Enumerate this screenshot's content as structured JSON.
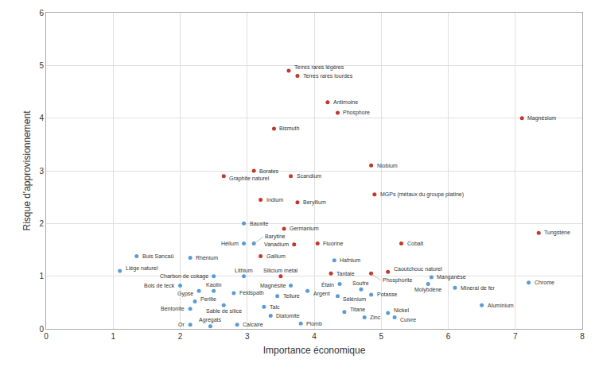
{
  "chart_data": {
    "type": "scatter",
    "xlabel": "Importance économique",
    "ylabel": "Risque d'approvisionnement",
    "xlim": [
      0,
      8
    ],
    "ylim": [
      0,
      6
    ],
    "xticks": [
      0,
      1,
      2,
      3,
      4,
      5,
      6,
      7,
      8
    ],
    "yticks": [
      0,
      1,
      2,
      3,
      4,
      5,
      6
    ],
    "grid": true,
    "labels": [
      "Terres rares légères",
      "Terres rares lourdes",
      "Antimoine",
      "Phosphore",
      "Bismuth",
      "Magnésium",
      "Borates",
      "Scandium",
      "Niobium",
      "Graphite naturel",
      "Indium",
      "Beryllium",
      "MGPs (métaux du groupe platine)",
      "Germanium",
      "Vanadium",
      "Hélium",
      "Barytine",
      "Gallium",
      "Fluorine",
      "Hafnium",
      "Tantale",
      "Phosphorite",
      "Caoutchouc naturel",
      "Cobalt",
      "Tungstène",
      "Manganèse",
      "Molybdène",
      "Chrome",
      "Minerai de fer",
      "Aluminium",
      "Potasse",
      "Nickel",
      "Cuivre",
      "Zinc",
      "Titane",
      "Sélénium",
      "Soufre",
      "Étain",
      "Argent",
      "Magnésite",
      "Silicium métal",
      "Tellure",
      "Plomb",
      "Diatomite",
      "Talc",
      "Feldspath",
      "Kaolin",
      "Sable de silice",
      "Calcaire",
      "Agrégats",
      "Or",
      "Bentonite",
      "Perlite",
      "Gypse",
      "Bauxite",
      "Lithium",
      "Charbon de cokage",
      "Rhénium",
      "Bois de teck",
      "Buis Sancaü",
      "Liège naturel"
    ],
    "x": [
      3.62,
      3.75,
      4.2,
      4.35,
      3.4,
      7.1,
      3.1,
      3.65,
      4.85,
      2.65,
      3.2,
      3.75,
      4.9,
      3.55,
      3.7,
      2.95,
      3.1,
      3.2,
      4.05,
      4.3,
      4.25,
      4.85,
      5.1,
      5.3,
      7.35,
      5.75,
      5.7,
      7.2,
      6.1,
      6.5,
      4.85,
      5.1,
      5.2,
      4.75,
      4.45,
      4.35,
      4.7,
      4.38,
      3.9,
      3.65,
      3.5,
      3.45,
      3.8,
      3.35,
      3.25,
      2.8,
      2.5,
      2.65,
      2.85,
      2.45,
      2.15,
      2.15,
      2.22,
      2.28,
      2.95,
      2.95,
      2.5,
      2.15,
      2.0,
      1.35,
      1.1
    ],
    "values": [
      4.9,
      4.8,
      4.3,
      4.1,
      3.8,
      4.0,
      3.0,
      2.9,
      3.1,
      2.9,
      2.45,
      2.4,
      2.55,
      1.9,
      1.6,
      1.62,
      1.62,
      1.38,
      1.62,
      1.3,
      1.05,
      1.05,
      1.08,
      1.62,
      1.82,
      0.98,
      0.85,
      0.88,
      0.78,
      0.45,
      0.65,
      0.3,
      0.22,
      0.22,
      0.32,
      0.62,
      0.75,
      0.85,
      0.72,
      0.82,
      1.0,
      0.62,
      0.1,
      0.25,
      0.42,
      0.68,
      0.72,
      0.45,
      0.08,
      0.05,
      0.08,
      0.38,
      0.52,
      0.72,
      2.0,
      1.0,
      1.0,
      1.35,
      0.82,
      1.38,
      1.1
    ],
    "colors": [
      "#c0392b",
      "#c0392b",
      "#c0392b",
      "#c0392b",
      "#c0392b",
      "#c0392b",
      "#c0392b",
      "#c0392b",
      "#c0392b",
      "#c0392b",
      "#c0392b",
      "#c0392b",
      "#c0392b",
      "#c0392b",
      "#c0392b",
      "#5b9bd5",
      "#5b9bd5",
      "#c0392b",
      "#c0392b",
      "#5b9bd5",
      "#c0392b",
      "#c0392b",
      "#c0392b",
      "#c0392b",
      "#c0392b",
      "#5b9bd5",
      "#5b9bd5",
      "#5b9bd5",
      "#5b9bd5",
      "#5b9bd5",
      "#5b9bd5",
      "#5b9bd5",
      "#5b9bd5",
      "#5b9bd5",
      "#5b9bd5",
      "#5b9bd5",
      "#5b9bd5",
      "#5b9bd5",
      "#5b9bd5",
      "#5b9bd5",
      "#c0392b",
      "#5b9bd5",
      "#5b9bd5",
      "#5b9bd5",
      "#5b9bd5",
      "#5b9bd5",
      "#5b9bd5",
      "#5b9bd5",
      "#5b9bd5",
      "#5b9bd5",
      "#5b9bd5",
      "#5b9bd5",
      "#5b9bd5",
      "#5b9bd5",
      "#5b9bd5",
      "#5b9bd5",
      "#5b9bd5",
      "#5b9bd5",
      "#5b9bd5",
      "#5b9bd5",
      "#5b9bd5"
    ]
  }
}
